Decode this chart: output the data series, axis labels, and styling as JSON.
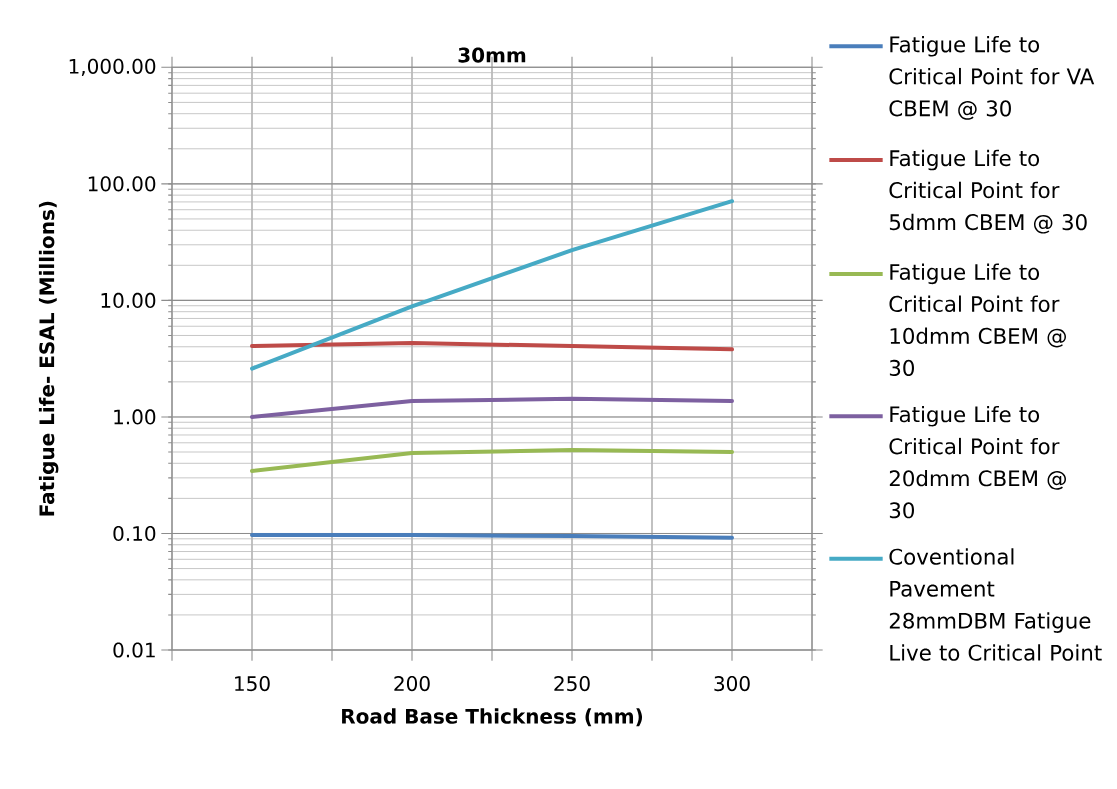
{
  "chart_data": {
    "type": "line",
    "title": "30mm",
    "xlabel": "Road Base Thickness (mm)",
    "ylabel": "Fatigue Life- ESAL (Millions)",
    "x": [
      150,
      200,
      250,
      300
    ],
    "series": [
      {
        "name": "Fatigue Life to Critical Point for VA CBEM @ 30",
        "color": "#4a7ebb",
        "values": [
          0.097,
          0.097,
          0.095,
          0.092
        ]
      },
      {
        "name": "Fatigue Life to Critical Point for 5dmm  CBEM @ 30",
        "color": "#be4b48",
        "values": [
          4.06,
          4.3,
          4.06,
          3.8
        ]
      },
      {
        "name": "Fatigue Life to Critical Point for 10dmm  CBEM @ 30",
        "color": "#98b954",
        "values": [
          0.344,
          0.49,
          0.52,
          0.5
        ]
      },
      {
        "name": "Fatigue Life to Critical Point for 20dmm CBEM @ 30",
        "color": "#7d60a0",
        "values": [
          1.0,
          1.37,
          1.43,
          1.37
        ]
      },
      {
        "name": "Coventional Pavement 28mmDBM Fatigue Live to Critical Point",
        "color": "#46aac5",
        "values": [
          2.6,
          8.9,
          27,
          71
        ]
      }
    ],
    "xlim": [
      125,
      325
    ],
    "xticks": [
      {
        "value": 125,
        "label": null
      },
      150,
      {
        "value": 175,
        "label": null
      },
      200,
      {
        "value": 225,
        "label": null
      },
      250,
      {
        "value": 275,
        "label": null
      },
      300,
      {
        "value": 325,
        "label": null
      }
    ],
    "ylim": [
      0.01,
      1000
    ],
    "yticks": [
      {
        "value": 0.01,
        "label": "0.01"
      },
      {
        "value": 0.1,
        "label": "0.10"
      },
      {
        "value": 1,
        "label": "1.00"
      },
      {
        "value": 10,
        "label": "10.00"
      },
      {
        "value": 100,
        "label": "100.00"
      },
      {
        "value": 1000,
        "label": "1,000.00"
      }
    ],
    "log": "y",
    "grid": true,
    "legend": "right"
  }
}
